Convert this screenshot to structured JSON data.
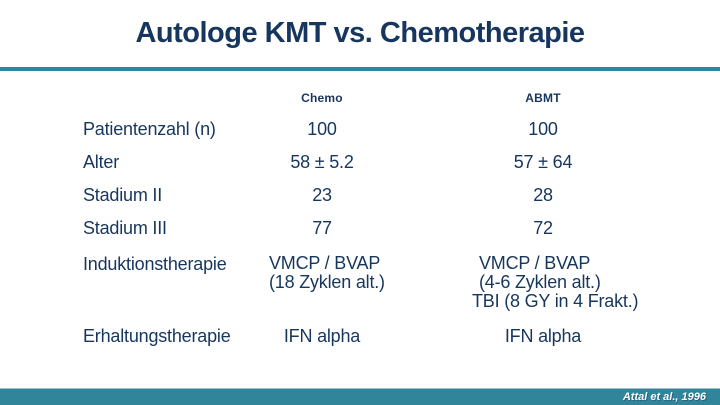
{
  "title": "Autologe KMT vs. Chemotherapie",
  "table": {
    "columns": [
      "Chemo",
      "ABMT"
    ],
    "rows": [
      {
        "label": "Patientenzahl (n)",
        "chemo": "100",
        "abmt": "100"
      },
      {
        "label": "Alter",
        "chemo": "58 ± 5.2",
        "abmt": "57 ± 64"
      },
      {
        "label": "Stadium II",
        "chemo": "23",
        "abmt": "28"
      },
      {
        "label": "Stadium III",
        "chemo": "77",
        "abmt": "72"
      },
      {
        "label": "Induktionstherapie",
        "chemo_lines": [
          "VMCP / BVAP",
          "(18 Zyklen alt.)"
        ],
        "abmt_lines": [
          "VMCP / BVAP",
          "(4-6 Zyklen alt.)",
          "TBI (8 GY in 4 Frakt.)"
        ]
      },
      {
        "label": "Erhaltungstherapie",
        "chemo": "IFN alpha",
        "abmt": "IFN alpha"
      }
    ]
  },
  "footer": {
    "citation": "Attal et al., 1996"
  },
  "colors": {
    "text_navy": "#17365d",
    "accent_teal": "#31859b",
    "background": "#ffffff",
    "citation_text": "#ffffff"
  }
}
